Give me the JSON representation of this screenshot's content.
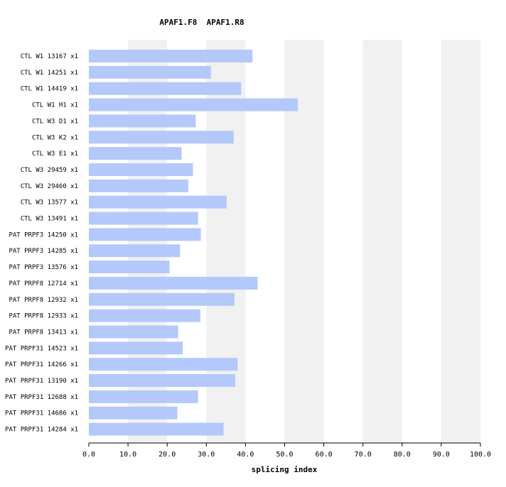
{
  "chart_data": {
    "type": "bar",
    "orientation": "horizontal",
    "title": "APAF1.F8  APAF1.R8",
    "xlabel": "splicing index",
    "xlim": [
      0,
      100
    ],
    "xticks": [
      "0.0",
      "10.0",
      "20.0",
      "30.0",
      "40.0",
      "50.0",
      "60.0",
      "70.0",
      "80.0",
      "90.0",
      "100.0"
    ],
    "categories": [
      "CTL W1 13167 x1",
      "CTL W1 14251 x1",
      "CTL W1 14419 x1",
      "CTL W1 H1 x1",
      "CTL W3 D1 x1",
      "CTL W3 K2 x1",
      "CTL W3 E1 x1",
      "CTL W3 29459 x1",
      "CTL W3 29460 x1",
      "CTL W3 13577 x1",
      "CTL W3 13491 x1",
      "PAT PRPF3 14250 x1",
      "PAT PRPF3 14285 x1",
      "PAT PRPF3 13576 x1",
      "PAT PRPF8 12714 x1",
      "PAT PRPF8 12932 x1",
      "PAT PRPF8 12933 x1",
      "PAT PRPF8 13413 x1",
      "PAT PRPF31 14523 x1",
      "PAT PRPF31 14266 x1",
      "PAT PRPF31 13190 x1",
      "PAT PRPF31 12688 x1",
      "PAT PRPF31 14686 x1",
      "PAT PRPF31 14284 x1"
    ],
    "values": [
      41.8,
      31.2,
      38.9,
      53.4,
      27.3,
      37.0,
      23.7,
      26.6,
      25.4,
      35.2,
      27.9,
      28.6,
      23.3,
      20.6,
      43.1,
      37.2,
      28.5,
      22.8,
      24.0,
      38.0,
      37.4,
      27.9,
      22.6,
      34.4
    ],
    "grid": "alternating vertical bands",
    "colors": {
      "bar": "#b3c9fb",
      "band": "#f1f1f1",
      "axis": "#000000",
      "background": "#ffffff"
    }
  }
}
